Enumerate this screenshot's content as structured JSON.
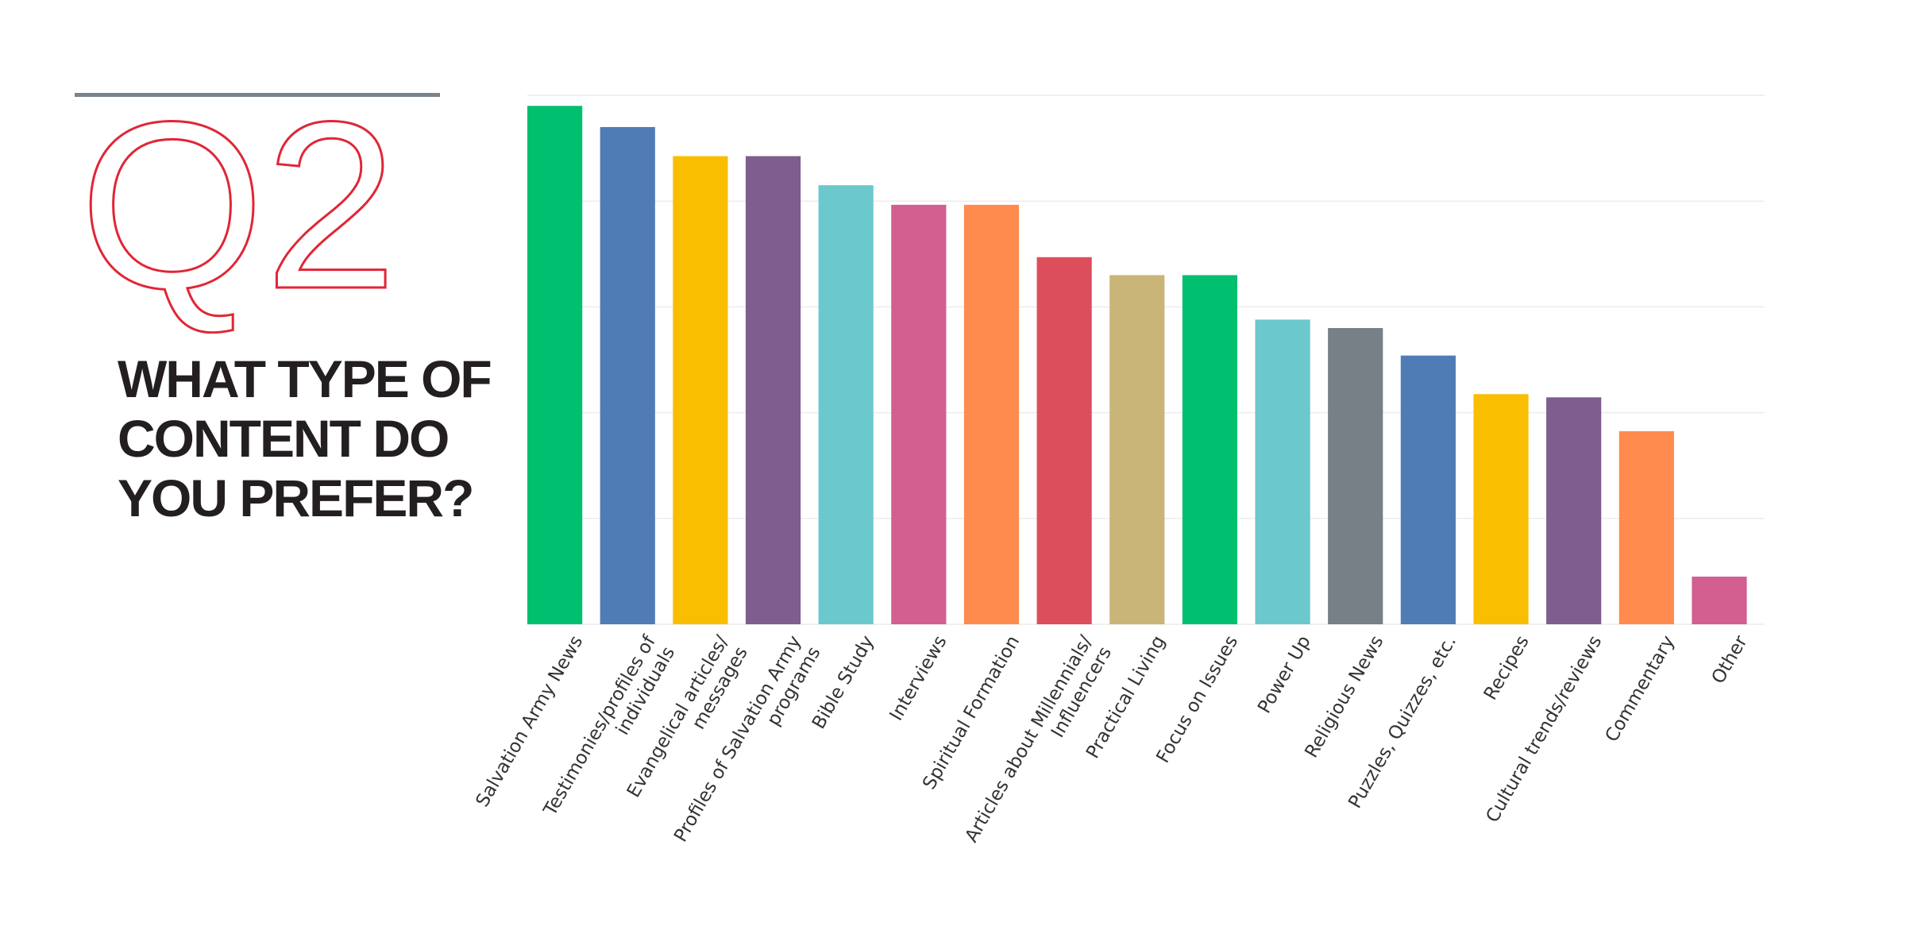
{
  "badge": {
    "text": "Q2",
    "color": "#e02636"
  },
  "question": {
    "lines": [
      "WHAT TYPE OF",
      "CONTENT DO",
      "YOU PREFER?"
    ]
  },
  "chart_data": {
    "type": "bar",
    "title": "",
    "xlabel": "",
    "ylabel": "",
    "ylim": [
      0,
      100
    ],
    "grid": true,
    "y_tick_labels_shown": false,
    "categories": [
      [
        "Salvation Army News"
      ],
      [
        "Testimonies/profiles of",
        "individuals"
      ],
      [
        "Evangelical articles/",
        "messages"
      ],
      [
        "Profiles of Salvation Army",
        "programs"
      ],
      [
        "Bible Study"
      ],
      [
        "Interviews"
      ],
      [
        "Spiritual Formation"
      ],
      [
        "Articles about Millennials/",
        "Influencers"
      ],
      [
        "Practical Living"
      ],
      [
        "Focus on Issues"
      ],
      [
        "Power Up"
      ],
      [
        "Religious News"
      ],
      [
        "Puzzles, Quizzes, etc."
      ],
      [
        "Recipes"
      ],
      [
        "Cultural trends/reviews"
      ],
      [
        "Commentary"
      ],
      [
        "Other"
      ]
    ],
    "values": [
      98,
      94,
      88.5,
      88.5,
      83,
      79.3,
      79.3,
      69.4,
      66,
      66,
      57.6,
      56,
      50.8,
      43.5,
      42.9,
      36.5,
      9
    ],
    "colors": [
      "#00bf6f",
      "#507cb6",
      "#f9be00",
      "#7d5e8f",
      "#6bc8cd",
      "#d25f90",
      "#ff8b4f",
      "#dd4e5d",
      "#c9b577",
      "#00bf6f",
      "#6bc8cd",
      "#768086",
      "#507cb6",
      "#f9be00",
      "#7d5e8f",
      "#ff8b4f",
      "#d25f90"
    ]
  }
}
